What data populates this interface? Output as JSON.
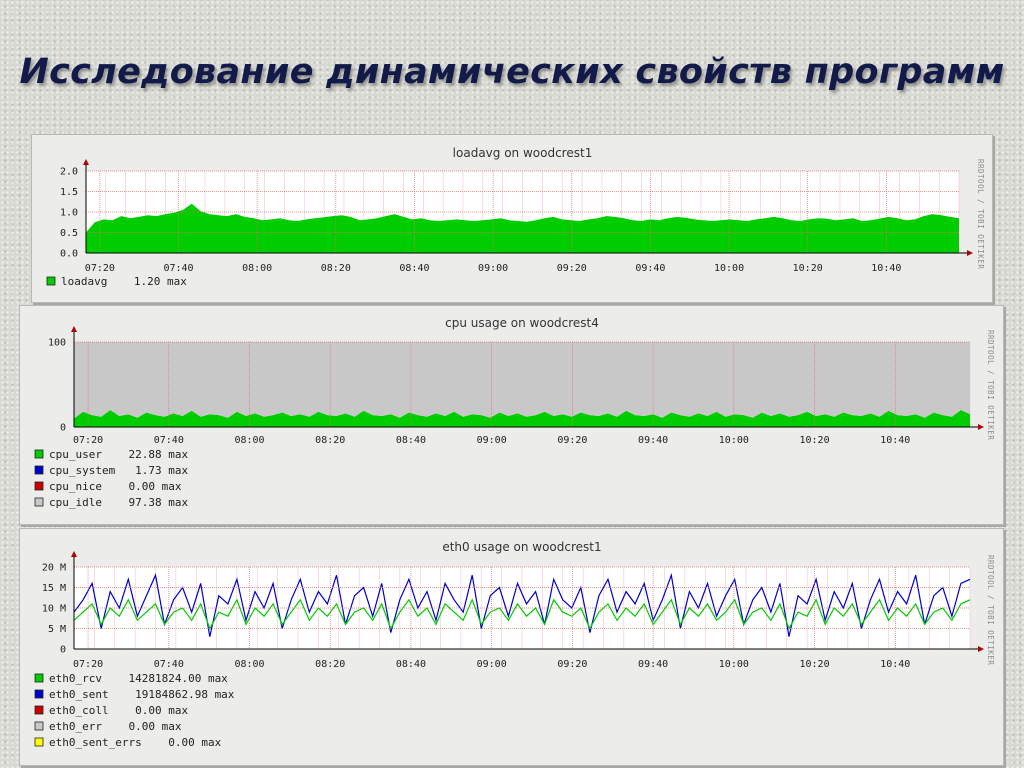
{
  "slide": {
    "title": "Исследование динамических свойств программ"
  },
  "watermark": "RRDTOOL / TOBI OETIKER",
  "colors": {
    "green": "#00cc00",
    "blue": "#0000cc",
    "red": "#cc0000",
    "gray": "#c8c8c8",
    "yellow": "#ffff00",
    "grid": "#e07070",
    "canvas": "#ffffff"
  },
  "chart_data": [
    {
      "type": "area",
      "title": "loadavg on woodcrest1",
      "x_ticks": [
        "07:20",
        "07:40",
        "08:00",
        "08:20",
        "08:40",
        "09:00",
        "09:20",
        "09:40",
        "10:00",
        "10:20",
        "10:40"
      ],
      "y_ticks": [
        "2.0",
        "1.5",
        "1.0",
        "0.5",
        "0.0"
      ],
      "ylim": [
        0,
        2.0
      ],
      "grid": true,
      "series": [
        {
          "name": "loadavg",
          "color": "#00cc00",
          "values": [
            0.5,
            0.75,
            0.82,
            0.8,
            0.9,
            0.85,
            0.88,
            0.92,
            0.9,
            0.95,
            0.98,
            1.05,
            1.2,
            1.02,
            0.95,
            0.92,
            0.9,
            0.95,
            0.88,
            0.85,
            0.8,
            0.82,
            0.85,
            0.8,
            0.78,
            0.82,
            0.85,
            0.87,
            0.9,
            0.92,
            0.88,
            0.8,
            0.82,
            0.85,
            0.9,
            0.95,
            0.88,
            0.82,
            0.85,
            0.8,
            0.78,
            0.8,
            0.82,
            0.8,
            0.78,
            0.8,
            0.82,
            0.85,
            0.8,
            0.78,
            0.76,
            0.8,
            0.85,
            0.88,
            0.82,
            0.8,
            0.78,
            0.82,
            0.85,
            0.9,
            0.88,
            0.85,
            0.8,
            0.78,
            0.82,
            0.8,
            0.85,
            0.88,
            0.86,
            0.82,
            0.8,
            0.78,
            0.8,
            0.82,
            0.8,
            0.78,
            0.82,
            0.85,
            0.88,
            0.85,
            0.8,
            0.78,
            0.82,
            0.85,
            0.84,
            0.8,
            0.82,
            0.85,
            0.78,
            0.8,
            0.84,
            0.88,
            0.85,
            0.8,
            0.82,
            0.9,
            0.95,
            0.92,
            0.88,
            0.85
          ]
        }
      ],
      "legend": [
        {
          "swatch": "#00cc00",
          "text": "loadavg    1.20 max"
        }
      ]
    },
    {
      "type": "area",
      "title": "cpu usage on woodcrest4",
      "x_ticks": [
        "07:20",
        "07:40",
        "08:00",
        "08:20",
        "08:40",
        "09:00",
        "09:20",
        "09:40",
        "10:00",
        "10:20",
        "10:40"
      ],
      "y_ticks": [
        "100",
        "0"
      ],
      "ylim": [
        0,
        100
      ],
      "grid": true,
      "series": [
        {
          "name": "cpu_user",
          "color": "#00cc00",
          "values": [
            10,
            18,
            14,
            12,
            20,
            13,
            15,
            11,
            17,
            14,
            12,
            16,
            13,
            19,
            12,
            15,
            14,
            11,
            18,
            13,
            16,
            12,
            14,
            17,
            13,
            15,
            12,
            18,
            14,
            13,
            16,
            12,
            19,
            14,
            13,
            15,
            11,
            17,
            14,
            12,
            16,
            13,
            18,
            12,
            15,
            14,
            11,
            17,
            13,
            16,
            12,
            14,
            18,
            13,
            15,
            12,
            17,
            14,
            13,
            16,
            12,
            19,
            14,
            13,
            15,
            11,
            17,
            14,
            12,
            16,
            13,
            18,
            12,
            15,
            14,
            11,
            17,
            13,
            16,
            12,
            14,
            18,
            13,
            15,
            12,
            17,
            14,
            13,
            16,
            12,
            19,
            14,
            13,
            15,
            11,
            17,
            14,
            12,
            20,
            15
          ]
        },
        {
          "name": "cpu_idle",
          "color": "#c8c8c8",
          "values": [
            90,
            82,
            86,
            88,
            80,
            87,
            85,
            89,
            83,
            86,
            88,
            84,
            87,
            81,
            88,
            85,
            86,
            89,
            82,
            87,
            84,
            88,
            86,
            83,
            87,
            85,
            88,
            82,
            86,
            87,
            84,
            88,
            81,
            86,
            87,
            85,
            89,
            83,
            86,
            88,
            84,
            87,
            82,
            88,
            85,
            86,
            89,
            83,
            87,
            84,
            88,
            86,
            82,
            87,
            85,
            88,
            83,
            86,
            87,
            84,
            88,
            81,
            86,
            87,
            85,
            89,
            83,
            86,
            88,
            84,
            87,
            82,
            88,
            85,
            86,
            89,
            83,
            87,
            84,
            88,
            86,
            82,
            87,
            85,
            88,
            83,
            86,
            87,
            84,
            88,
            81,
            86,
            87,
            85,
            89,
            83,
            86,
            88,
            80,
            85
          ]
        }
      ],
      "legend": [
        {
          "swatch": "#00cc00",
          "text": "cpu_user    22.88 max"
        },
        {
          "swatch": "#0000cc",
          "text": "cpu_system   1.73 max"
        },
        {
          "swatch": "#cc0000",
          "text": "cpu_nice    0.00 max"
        },
        {
          "swatch": "#c8c8c8",
          "text": "cpu_idle    97.38 max"
        }
      ]
    },
    {
      "type": "line",
      "title": "eth0 usage on woodcrest1",
      "x_ticks": [
        "07:20",
        "07:40",
        "08:00",
        "08:20",
        "08:40",
        "09:00",
        "09:20",
        "09:40",
        "10:00",
        "10:20",
        "10:40"
      ],
      "y_ticks": [
        "20 M",
        "15 M",
        "10 M",
        "5 M",
        "0"
      ],
      "ylim": [
        0,
        20
      ],
      "grid": true,
      "series": [
        {
          "name": "eth0_sent",
          "color": "#0000cc",
          "values": [
            9,
            12,
            16,
            5,
            14,
            10,
            17,
            8,
            13,
            18,
            6,
            12,
            15,
            9,
            16,
            3,
            13,
            11,
            17,
            7,
            14,
            10,
            16,
            5,
            12,
            17,
            9,
            14,
            11,
            18,
            6,
            13,
            15,
            8,
            16,
            4,
            12,
            17,
            10,
            14,
            7,
            16,
            12,
            9,
            18,
            5,
            13,
            15,
            8,
            16,
            11,
            14,
            6,
            17,
            12,
            10,
            15,
            4,
            13,
            17,
            9,
            14,
            11,
            16,
            7,
            12,
            18,
            5,
            14,
            10,
            16,
            8,
            13,
            17,
            6,
            12,
            15,
            9,
            16,
            3,
            13,
            11,
            17,
            7,
            14,
            10,
            16,
            5,
            12,
            17,
            9,
            14,
            11,
            18,
            6,
            13,
            15,
            8,
            16,
            17
          ]
        },
        {
          "name": "eth0_rcv",
          "color": "#00cc00",
          "values": [
            7,
            9,
            11,
            6,
            10,
            8,
            12,
            7,
            9,
            11,
            6,
            9,
            10,
            7,
            11,
            5,
            9,
            8,
            12,
            6,
            10,
            8,
            11,
            6,
            9,
            12,
            7,
            10,
            8,
            11,
            6,
            9,
            10,
            7,
            11,
            5,
            9,
            12,
            8,
            10,
            6,
            11,
            9,
            7,
            12,
            6,
            9,
            10,
            7,
            11,
            8,
            10,
            6,
            12,
            9,
            8,
            10,
            5,
            9,
            11,
            7,
            10,
            8,
            11,
            6,
            9,
            12,
            6,
            10,
            8,
            11,
            7,
            9,
            12,
            6,
            9,
            10,
            7,
            11,
            5,
            9,
            8,
            12,
            6,
            10,
            8,
            11,
            6,
            9,
            12,
            7,
            10,
            8,
            11,
            6,
            9,
            10,
            7,
            11,
            12
          ]
        }
      ],
      "legend": [
        {
          "swatch": "#00cc00",
          "text": "eth0_rcv    14281824.00 max"
        },
        {
          "swatch": "#0000cc",
          "text": "eth0_sent    19184862.98 max"
        },
        {
          "swatch": "#cc0000",
          "text": "eth0_coll    0.00 max"
        },
        {
          "swatch": "#c8c8c8",
          "text": "eth0_err    0.00 max"
        },
        {
          "swatch": "#ffff00",
          "text": "eth0_sent_errs    0.00 max"
        }
      ]
    }
  ]
}
